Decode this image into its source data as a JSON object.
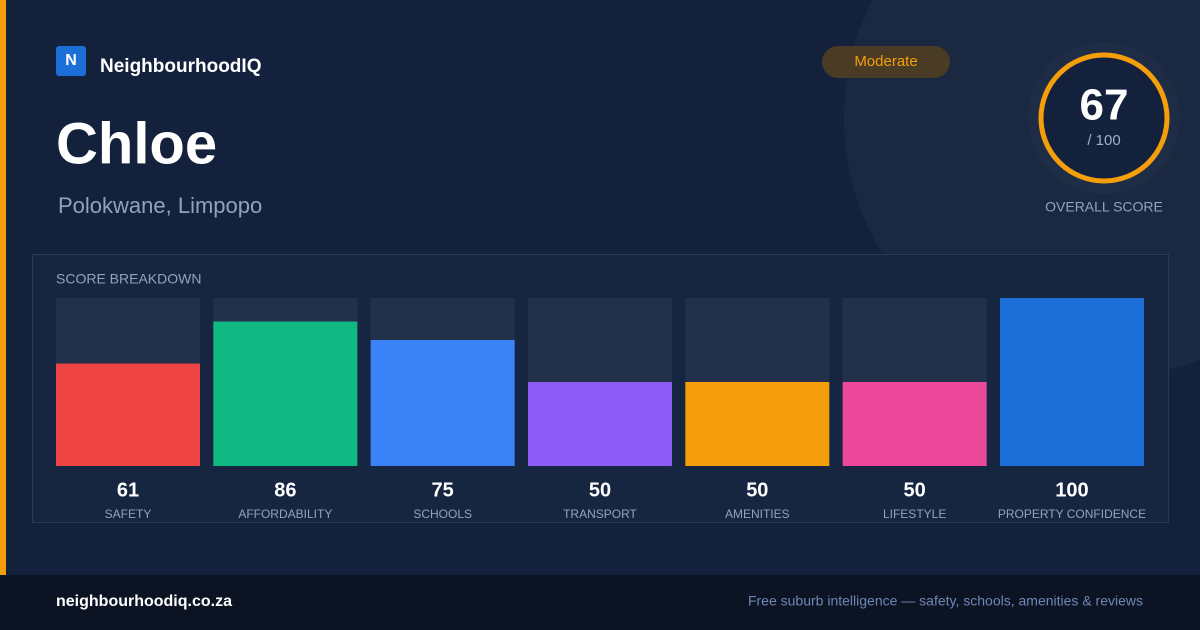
{
  "brand": {
    "logo": "N",
    "name": "NeighbourhoodIQ"
  },
  "header": {
    "title": "Chloe",
    "location": "Polokwane, Limpopo",
    "badge": "Moderate"
  },
  "overall": {
    "score": 67,
    "out_of": "/ 100",
    "label": "OVERALL SCORE"
  },
  "chart_data": {
    "type": "bar",
    "title": "SCORE BREAKDOWN",
    "categories": [
      "SAFETY",
      "AFFORDABILITY",
      "SCHOOLS",
      "TRANSPORT",
      "AMENITIES",
      "LIFESTYLE",
      "PROPERTY CONFIDENCE"
    ],
    "values": [
      61,
      86,
      75,
      50,
      50,
      50,
      100
    ],
    "colors": [
      "#ef4444",
      "#10b981",
      "#3b82f6",
      "#8b5cf6",
      "#f59e0b",
      "#ec4899",
      "#1d6fd8"
    ],
    "ylim": [
      0,
      100
    ]
  },
  "footer": {
    "domain": "neighbourhoodiq.co.za",
    "tagline": "Free suburb intelligence — safety, schools, amenities & reviews"
  }
}
